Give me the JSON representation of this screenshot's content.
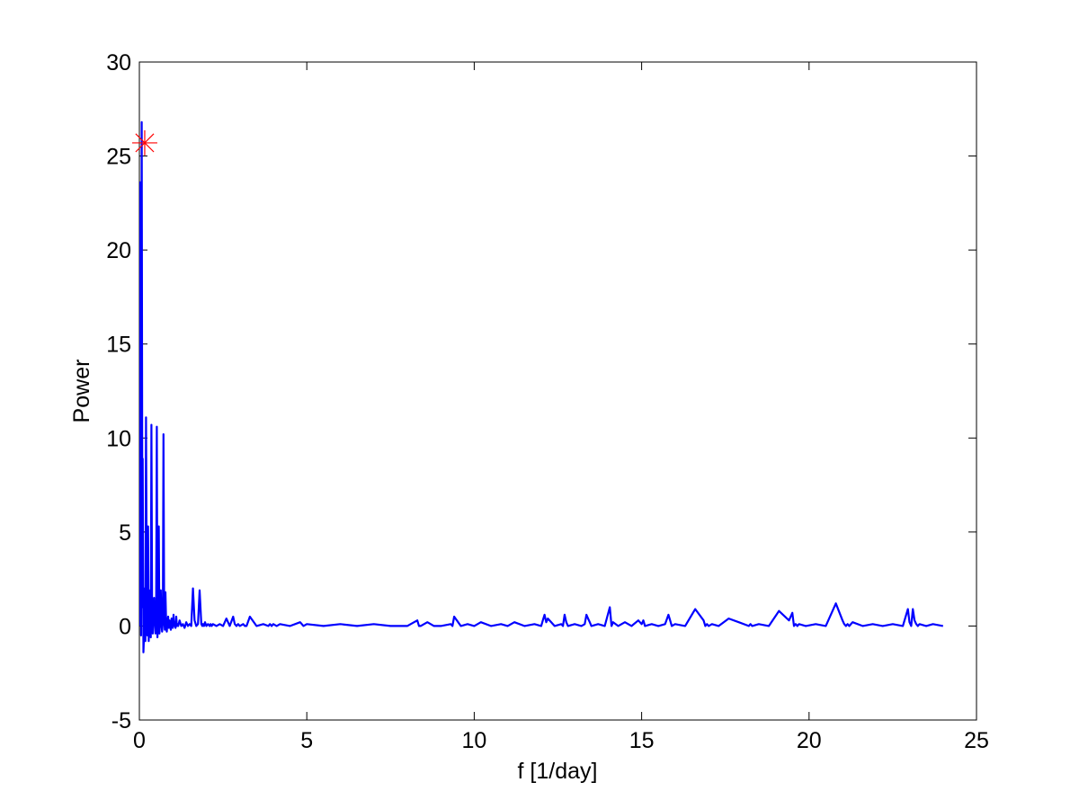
{
  "chart_data": {
    "type": "line",
    "title": "",
    "xlabel": "f [1/day]",
    "ylabel": "Power",
    "xlim": [
      0,
      25
    ],
    "ylim": [
      -5,
      30
    ],
    "xticks": [
      0,
      5,
      10,
      15,
      20,
      25
    ],
    "yticks": [
      -5,
      0,
      5,
      10,
      15,
      20,
      25,
      30
    ],
    "xtick_labels": [
      "0",
      "5",
      "10",
      "15",
      "20",
      "25"
    ],
    "ytick_labels": [
      "-5",
      "0",
      "5",
      "10",
      "15",
      "20",
      "25",
      "30"
    ],
    "grid": false,
    "box": true,
    "line_color": "#0000ff",
    "marker_color": "#ff0000",
    "series": [
      {
        "x": [
          0.0,
          0.03,
          0.05,
          0.07,
          0.09,
          0.1,
          0.12,
          0.14,
          0.16,
          0.18,
          0.2,
          0.22,
          0.24,
          0.26,
          0.28,
          0.3,
          0.32,
          0.34,
          0.36,
          0.38,
          0.4,
          0.42,
          0.44,
          0.46,
          0.48,
          0.5,
          0.52,
          0.54,
          0.56,
          0.58,
          0.6,
          0.62,
          0.64,
          0.66,
          0.68,
          0.7,
          0.72,
          0.74,
          0.76,
          0.78,
          0.8,
          0.82,
          0.84,
          0.86,
          0.88,
          0.9,
          0.92,
          0.94,
          0.96,
          0.98,
          1.0,
          1.02,
          1.04,
          1.06,
          1.08,
          1.1,
          1.12,
          1.14,
          1.16,
          1.2,
          1.25,
          1.3,
          1.35,
          1.4,
          1.45,
          1.5,
          1.55,
          1.6,
          1.65,
          1.7,
          1.75,
          1.8,
          1.85,
          1.88,
          1.9,
          1.93,
          1.96,
          2.0,
          2.05,
          2.1,
          2.13,
          2.16,
          2.2,
          2.3,
          2.4,
          2.5,
          2.6,
          2.7,
          2.8,
          2.85,
          2.9,
          2.95,
          3.0,
          3.1,
          3.15,
          3.2,
          3.3,
          3.5,
          3.7,
          3.85,
          3.9,
          3.95,
          4.0,
          4.1,
          4.2,
          4.5,
          4.8,
          4.9,
          5.0,
          5.5,
          6.0,
          6.5,
          7.0,
          7.5,
          8.0,
          8.3,
          8.35,
          8.4,
          8.6,
          8.8,
          9.0,
          9.3,
          9.35,
          9.4,
          9.6,
          9.8,
          10.0,
          10.2,
          10.5,
          10.8,
          11.0,
          11.2,
          11.5,
          11.8,
          12.0,
          12.05,
          12.1,
          12.15,
          12.2,
          12.4,
          12.6,
          12.65,
          12.7,
          12.75,
          12.8,
          13.0,
          13.2,
          13.3,
          13.35,
          13.4,
          13.45,
          13.5,
          13.7,
          13.9,
          14.05,
          14.1,
          14.15,
          14.3,
          14.5,
          14.7,
          14.9,
          15.0,
          15.05,
          15.1,
          15.3,
          15.5,
          15.7,
          15.8,
          15.85,
          15.9,
          16.0,
          16.3,
          16.6,
          16.85,
          16.9,
          16.95,
          17.0,
          17.1,
          17.3,
          17.6,
          17.9,
          18.2,
          18.25,
          18.3,
          18.5,
          18.8,
          19.1,
          19.4,
          19.5,
          19.55,
          19.6,
          19.65,
          19.7,
          19.9,
          20.2,
          20.5,
          20.8,
          21.0,
          21.05,
          21.1,
          21.15,
          21.2,
          21.3,
          21.6,
          21.9,
          22.2,
          22.5,
          22.8,
          22.95,
          23.0,
          23.05,
          23.1,
          23.15,
          23.2,
          23.25,
          23.3,
          23.5,
          23.7,
          24.0
        ],
        "y": [
          0.0,
          23.6,
          -0.5,
          26.8,
          1.0,
          8.9,
          -1.4,
          -0.5,
          2.0,
          -0.8,
          11.1,
          1.8,
          -0.5,
          5.3,
          -0.8,
          0.6,
          1.9,
          -0.6,
          10.7,
          0.5,
          -0.4,
          0.8,
          1.5,
          0.2,
          -0.4,
          0.3,
          10.6,
          -0.6,
          0.4,
          5.3,
          -0.4,
          0.3,
          1.9,
          0.1,
          -0.3,
          0.2,
          10.2,
          0.5,
          -0.2,
          1.8,
          0.1,
          -0.3,
          0.2,
          0.5,
          -0.1,
          0.3,
          0.1,
          -0.2,
          0.4,
          0.1,
          -0.1,
          0.6,
          0.0,
          0.2,
          -0.1,
          0.5,
          0.0,
          0.1,
          0.0,
          0.3,
          0.0,
          0.1,
          -0.1,
          0.2,
          0.0,
          0.1,
          0.0,
          2.0,
          0.3,
          0.0,
          0.1,
          1.9,
          0.1,
          0.0,
          0.1,
          0.0,
          0.2,
          0.0,
          0.1,
          0.0,
          0.1,
          0.0,
          0.1,
          0.0,
          0.1,
          0.0,
          0.4,
          0.0,
          0.5,
          0.1,
          0.0,
          0.1,
          0.0,
          0.1,
          0.0,
          0.0,
          0.5,
          0.0,
          0.1,
          0.0,
          0.1,
          0.0,
          0.1,
          0.0,
          0.1,
          0.0,
          0.2,
          0.0,
          0.1,
          0.0,
          0.1,
          0.0,
          0.1,
          0.0,
          0.0,
          0.3,
          0.0,
          0.0,
          0.2,
          0.0,
          0.0,
          0.1,
          0.0,
          0.5,
          0.0,
          0.1,
          0.0,
          0.2,
          0.0,
          0.1,
          0.0,
          0.2,
          0.0,
          0.1,
          0.0,
          0.3,
          0.6,
          0.2,
          0.4,
          0.0,
          0.1,
          0.0,
          0.6,
          0.2,
          0.0,
          0.1,
          0.0,
          0.1,
          0.6,
          0.4,
          0.2,
          0.0,
          0.1,
          0.0,
          1.0,
          0.0,
          0.2,
          0.0,
          0.2,
          0.0,
          0.3,
          0.1,
          0.3,
          0.0,
          0.1,
          0.0,
          0.1,
          0.6,
          0.3,
          0.0,
          0.1,
          0.0,
          0.9,
          0.3,
          0.0,
          0.1,
          0.0,
          0.1,
          0.0,
          0.4,
          0.2,
          0.0,
          0.1,
          0.0,
          0.1,
          0.0,
          0.8,
          0.3,
          0.7,
          0.0,
          0.1,
          0.0,
          0.1,
          0.0,
          0.1,
          0.0,
          1.2,
          0.3,
          0.1,
          0.0,
          0.1,
          0.0,
          0.2,
          0.0,
          0.1,
          0.0,
          0.1,
          0.0,
          0.9,
          0.2,
          0.0,
          0.9,
          0.3,
          0.1,
          0.0,
          0.1,
          0.0,
          0.1,
          0.0
        ]
      }
    ],
    "peak_marker": {
      "x": 0.16,
      "y": 25.7,
      "symbol": "asterisk"
    }
  }
}
